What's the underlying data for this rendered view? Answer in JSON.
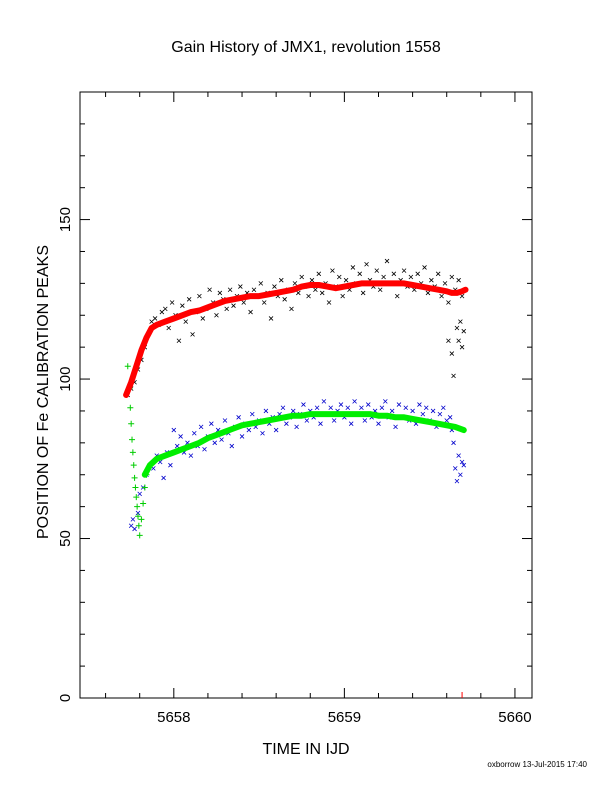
{
  "chart_data": {
    "type": "scatter",
    "title": "Gain History of JMX1, revolution 1558",
    "xlabel": "TIME IN IJD",
    "ylabel": "POSITION OF Fe CALIBRATION PEAKS",
    "xlim": [
      5657.45,
      5660.1
    ],
    "ylim": [
      0,
      190
    ],
    "x_ticks": [
      5658,
      5659,
      5660
    ],
    "x_tick_labels": [
      "5658",
      "5659",
      "5660"
    ],
    "y_ticks": [
      0,
      50,
      100,
      150
    ],
    "y_tick_labels": [
      "0",
      "50",
      "100",
      "150"
    ],
    "grid": false,
    "legend": "none",
    "series": [
      {
        "marker": "x",
        "color": "#000000",
        "points": [
          [
            5657.73,
            95
          ],
          [
            5657.75,
            97
          ],
          [
            5657.77,
            99
          ],
          [
            5657.79,
            103
          ],
          [
            5657.81,
            106
          ],
          [
            5657.83,
            110
          ],
          [
            5657.85,
            114
          ],
          [
            5657.87,
            118
          ],
          [
            5657.89,
            119
          ],
          [
            5657.91,
            117
          ],
          [
            5657.93,
            121
          ],
          [
            5657.95,
            122
          ],
          [
            5657.97,
            116
          ],
          [
            5657.99,
            124
          ],
          [
            5658.01,
            120
          ],
          [
            5658.03,
            112
          ],
          [
            5658.05,
            123
          ],
          [
            5658.07,
            118
          ],
          [
            5658.09,
            125
          ],
          [
            5658.11,
            114
          ],
          [
            5658.13,
            121
          ],
          [
            5658.15,
            126
          ],
          [
            5658.17,
            119
          ],
          [
            5658.19,
            122
          ],
          [
            5658.21,
            128
          ],
          [
            5658.23,
            124
          ],
          [
            5658.25,
            120
          ],
          [
            5658.27,
            127
          ],
          [
            5658.29,
            125
          ],
          [
            5658.31,
            122
          ],
          [
            5658.33,
            128
          ],
          [
            5658.35,
            123
          ],
          [
            5658.37,
            126
          ],
          [
            5658.39,
            129
          ],
          [
            5658.41,
            124
          ],
          [
            5658.43,
            127
          ],
          [
            5658.45,
            121
          ],
          [
            5658.47,
            128
          ],
          [
            5658.49,
            126
          ],
          [
            5658.51,
            130
          ],
          [
            5658.53,
            124
          ],
          [
            5658.55,
            127
          ],
          [
            5658.57,
            119
          ],
          [
            5658.59,
            129
          ],
          [
            5658.61,
            126
          ],
          [
            5658.63,
            131
          ],
          [
            5658.65,
            125
          ],
          [
            5658.67,
            128
          ],
          [
            5658.69,
            122
          ],
          [
            5658.71,
            130
          ],
          [
            5658.73,
            127
          ],
          [
            5658.75,
            132
          ],
          [
            5658.77,
            129
          ],
          [
            5658.79,
            126
          ],
          [
            5658.81,
            131
          ],
          [
            5658.83,
            128
          ],
          [
            5658.85,
            133
          ],
          [
            5658.87,
            127
          ],
          [
            5658.89,
            130
          ],
          [
            5658.91,
            124
          ],
          [
            5658.93,
            134
          ],
          [
            5658.95,
            129
          ],
          [
            5658.97,
            132
          ],
          [
            5658.99,
            126
          ],
          [
            5659.01,
            131
          ],
          [
            5659.03,
            128
          ],
          [
            5659.05,
            135
          ],
          [
            5659.07,
            130
          ],
          [
            5659.09,
            133
          ],
          [
            5659.11,
            127
          ],
          [
            5659.13,
            136
          ],
          [
            5659.15,
            131
          ],
          [
            5659.17,
            129
          ],
          [
            5659.19,
            134
          ],
          [
            5659.21,
            128
          ],
          [
            5659.23,
            132
          ],
          [
            5659.25,
            137
          ],
          [
            5659.27,
            130
          ],
          [
            5659.29,
            133
          ],
          [
            5659.31,
            126
          ],
          [
            5659.33,
            131
          ],
          [
            5659.35,
            134
          ],
          [
            5659.37,
            129
          ],
          [
            5659.39,
            132
          ],
          [
            5659.41,
            128
          ],
          [
            5659.43,
            133
          ],
          [
            5659.45,
            130
          ],
          [
            5659.47,
            135
          ],
          [
            5659.49,
            127
          ],
          [
            5659.51,
            131
          ],
          [
            5659.53,
            129
          ],
          [
            5659.55,
            133
          ],
          [
            5659.57,
            126
          ],
          [
            5659.59,
            130
          ],
          [
            5659.61,
            124
          ],
          [
            5659.63,
            132
          ],
          [
            5659.65,
            128
          ],
          [
            5659.67,
            131
          ],
          [
            5659.69,
            126
          ],
          [
            5659.61,
            112
          ],
          [
            5659.63,
            108
          ],
          [
            5659.64,
            101
          ],
          [
            5659.66,
            116
          ],
          [
            5659.67,
            112
          ],
          [
            5659.68,
            118
          ],
          [
            5659.69,
            110
          ],
          [
            5659.7,
            115
          ]
        ]
      },
      {
        "marker": "x",
        "color": "#0000cc",
        "points": [
          [
            5657.75,
            54
          ],
          [
            5657.76,
            56
          ],
          [
            5657.77,
            53
          ],
          [
            5657.79,
            58
          ],
          [
            5657.8,
            64
          ],
          [
            5657.82,
            66
          ],
          [
            5657.84,
            70
          ],
          [
            5657.86,
            73
          ],
          [
            5657.88,
            72
          ],
          [
            5657.9,
            76
          ],
          [
            5657.92,
            74
          ],
          [
            5657.94,
            69
          ],
          [
            5657.96,
            77
          ],
          [
            5657.98,
            73
          ],
          [
            5658.0,
            84
          ],
          [
            5658.02,
            79
          ],
          [
            5658.04,
            82
          ],
          [
            5658.06,
            77
          ],
          [
            5658.08,
            80
          ],
          [
            5658.1,
            76
          ],
          [
            5658.12,
            83
          ],
          [
            5658.14,
            79
          ],
          [
            5658.16,
            85
          ],
          [
            5658.18,
            78
          ],
          [
            5658.2,
            82
          ],
          [
            5658.22,
            86
          ],
          [
            5658.24,
            80
          ],
          [
            5658.26,
            84
          ],
          [
            5658.28,
            81
          ],
          [
            5658.3,
            87
          ],
          [
            5658.32,
            83
          ],
          [
            5658.34,
            79
          ],
          [
            5658.36,
            85
          ],
          [
            5658.38,
            88
          ],
          [
            5658.4,
            82
          ],
          [
            5658.42,
            86
          ],
          [
            5658.44,
            84
          ],
          [
            5658.46,
            89
          ],
          [
            5658.48,
            85
          ],
          [
            5658.5,
            87
          ],
          [
            5658.52,
            83
          ],
          [
            5658.54,
            90
          ],
          [
            5658.56,
            86
          ],
          [
            5658.58,
            88
          ],
          [
            5658.6,
            84
          ],
          [
            5658.62,
            89
          ],
          [
            5658.64,
            91
          ],
          [
            5658.66,
            86
          ],
          [
            5658.68,
            88
          ],
          [
            5658.7,
            90
          ],
          [
            5658.72,
            85
          ],
          [
            5658.74,
            89
          ],
          [
            5658.76,
            92
          ],
          [
            5658.78,
            87
          ],
          [
            5658.8,
            90
          ],
          [
            5658.82,
            88
          ],
          [
            5658.84,
            91
          ],
          [
            5658.86,
            86
          ],
          [
            5658.88,
            93
          ],
          [
            5658.9,
            89
          ],
          [
            5658.92,
            91
          ],
          [
            5658.94,
            87
          ],
          [
            5658.96,
            90
          ],
          [
            5658.98,
            92
          ],
          [
            5659.0,
            88
          ],
          [
            5659.02,
            91
          ],
          [
            5659.04,
            86
          ],
          [
            5659.06,
            93
          ],
          [
            5659.08,
            89
          ],
          [
            5659.1,
            91
          ],
          [
            5659.12,
            87
          ],
          [
            5659.14,
            92
          ],
          [
            5659.16,
            88
          ],
          [
            5659.18,
            90
          ],
          [
            5659.2,
            86
          ],
          [
            5659.22,
            91
          ],
          [
            5659.24,
            93
          ],
          [
            5659.26,
            88
          ],
          [
            5659.28,
            90
          ],
          [
            5659.3,
            85
          ],
          [
            5659.32,
            92
          ],
          [
            5659.34,
            88
          ],
          [
            5659.36,
            91
          ],
          [
            5659.38,
            87
          ],
          [
            5659.4,
            90
          ],
          [
            5659.42,
            86
          ],
          [
            5659.44,
            92
          ],
          [
            5659.46,
            89
          ],
          [
            5659.48,
            91
          ],
          [
            5659.5,
            87
          ],
          [
            5659.52,
            90
          ],
          [
            5659.54,
            85
          ],
          [
            5659.56,
            89
          ],
          [
            5659.58,
            91
          ],
          [
            5659.6,
            87
          ],
          [
            5659.62,
            88
          ],
          [
            5659.63,
            84
          ],
          [
            5659.64,
            80
          ],
          [
            5659.65,
            72
          ],
          [
            5659.66,
            68
          ],
          [
            5659.67,
            76
          ],
          [
            5659.68,
            70
          ],
          [
            5659.69,
            74
          ],
          [
            5659.7,
            73
          ]
        ]
      }
    ],
    "fits": [
      {
        "color": "#ff0000",
        "points": [
          [
            5657.72,
            95
          ],
          [
            5657.75,
            99
          ],
          [
            5657.78,
            104
          ],
          [
            5657.81,
            109
          ],
          [
            5657.84,
            113
          ],
          [
            5657.87,
            116
          ],
          [
            5657.9,
            117
          ],
          [
            5657.95,
            118
          ],
          [
            5658.0,
            119
          ],
          [
            5658.05,
            120
          ],
          [
            5658.1,
            121
          ],
          [
            5658.15,
            121.5
          ],
          [
            5658.2,
            122.5
          ],
          [
            5658.25,
            123.5
          ],
          [
            5658.3,
            124.5
          ],
          [
            5658.35,
            125
          ],
          [
            5658.4,
            125.5
          ],
          [
            5658.45,
            126
          ],
          [
            5658.5,
            126
          ],
          [
            5658.55,
            126.5
          ],
          [
            5658.6,
            127
          ],
          [
            5658.65,
            127.5
          ],
          [
            5658.7,
            128
          ],
          [
            5658.75,
            129
          ],
          [
            5658.8,
            129.5
          ],
          [
            5658.85,
            129.5
          ],
          [
            5658.9,
            129
          ],
          [
            5658.95,
            128.5
          ],
          [
            5659.0,
            129
          ],
          [
            5659.05,
            129.5
          ],
          [
            5659.1,
            130
          ],
          [
            5659.15,
            130
          ],
          [
            5659.2,
            130
          ],
          [
            5659.25,
            130
          ],
          [
            5659.3,
            130
          ],
          [
            5659.35,
            130
          ],
          [
            5659.4,
            129.5
          ],
          [
            5659.45,
            129
          ],
          [
            5659.5,
            128.5
          ],
          [
            5659.55,
            128
          ],
          [
            5659.6,
            127.5
          ],
          [
            5659.63,
            127
          ],
          [
            5659.66,
            127
          ],
          [
            5659.69,
            127.5
          ],
          [
            5659.71,
            128
          ]
        ]
      },
      {
        "color": "#00ee00",
        "points": [
          [
            5657.83,
            70
          ],
          [
            5657.86,
            73
          ],
          [
            5657.9,
            75
          ],
          [
            5657.95,
            76
          ],
          [
            5658.0,
            77
          ],
          [
            5658.05,
            78
          ],
          [
            5658.1,
            79
          ],
          [
            5658.15,
            80
          ],
          [
            5658.2,
            81.5
          ],
          [
            5658.25,
            82.5
          ],
          [
            5658.3,
            83.5
          ],
          [
            5658.35,
            84.5
          ],
          [
            5658.4,
            85.5
          ],
          [
            5658.45,
            86
          ],
          [
            5658.5,
            86.5
          ],
          [
            5658.55,
            87
          ],
          [
            5658.6,
            87.5
          ],
          [
            5658.65,
            88
          ],
          [
            5658.7,
            88.5
          ],
          [
            5658.75,
            88.5
          ],
          [
            5658.8,
            89
          ],
          [
            5658.85,
            89
          ],
          [
            5658.9,
            89
          ],
          [
            5658.95,
            89
          ],
          [
            5659.0,
            89
          ],
          [
            5659.05,
            89
          ],
          [
            5659.1,
            89
          ],
          [
            5659.15,
            89
          ],
          [
            5659.2,
            88.5
          ],
          [
            5659.25,
            88.5
          ],
          [
            5659.3,
            88
          ],
          [
            5659.35,
            88
          ],
          [
            5659.4,
            87.5
          ],
          [
            5659.45,
            87
          ],
          [
            5659.5,
            86.5
          ],
          [
            5659.55,
            86
          ],
          [
            5659.6,
            85.5
          ],
          [
            5659.65,
            85
          ],
          [
            5659.7,
            84
          ]
        ]
      }
    ],
    "green_crosses": [
      [
        5657.73,
        104
      ],
      [
        5657.74,
        97
      ],
      [
        5657.745,
        91
      ],
      [
        5657.75,
        86
      ],
      [
        5657.755,
        81
      ],
      [
        5657.76,
        77
      ],
      [
        5657.765,
        73
      ],
      [
        5657.77,
        69
      ],
      [
        5657.775,
        66
      ],
      [
        5657.78,
        63
      ],
      [
        5657.785,
        60
      ],
      [
        5657.79,
        57
      ],
      [
        5657.795,
        54
      ],
      [
        5657.8,
        51
      ],
      [
        5657.81,
        56
      ],
      [
        5657.82,
        61
      ],
      [
        5657.83,
        66
      ],
      [
        5657.84,
        70
      ]
    ],
    "footer": "oxborrow 13-Jul-2015 17:40"
  }
}
